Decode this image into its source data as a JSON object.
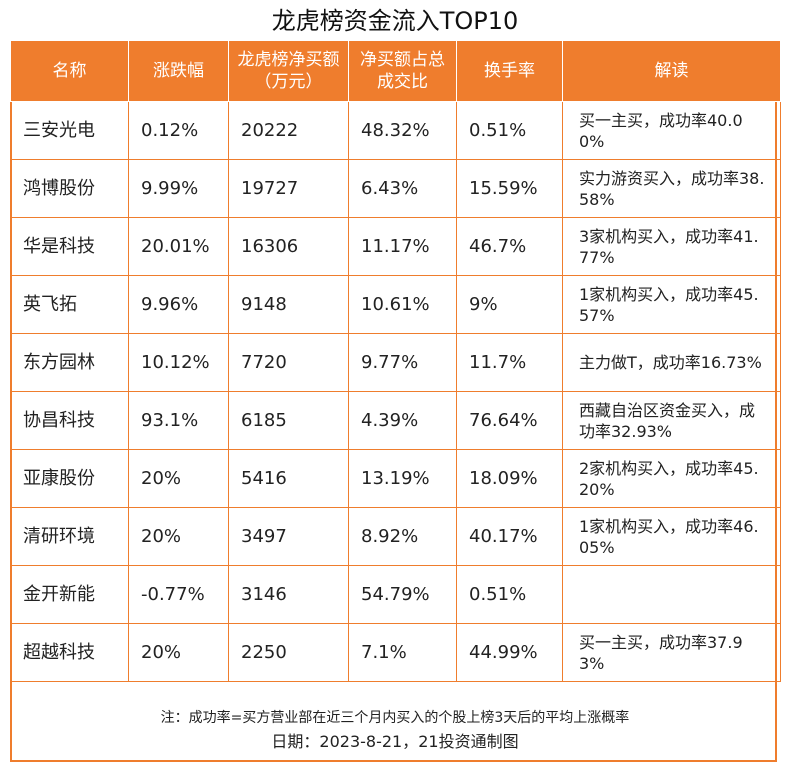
{
  "title": "龙虎榜资金流入TOP10",
  "headers": [
    "名称",
    "涨跌幅",
    "龙虎榜净买额（万元）",
    "净买额占总成交比",
    "换手率",
    "解读"
  ],
  "rows": [
    {
      "name": "三安光电",
      "change": "0.12%",
      "net_buy": "20222",
      "ratio": "48.32%",
      "turnover": "0.51%",
      "note": "买一主买，成功率40.00%"
    },
    {
      "name": "鸿博股份",
      "change": "9.99%",
      "net_buy": "19727",
      "ratio": "6.43%",
      "turnover": "15.59%",
      "note": "实力游资买入，成功率38.58%"
    },
    {
      "name": "华是科技",
      "change": "20.01%",
      "net_buy": "16306",
      "ratio": "11.17%",
      "turnover": "46.7%",
      "note": "3家机构买入，成功率41.77%"
    },
    {
      "name": "英飞拓",
      "change": "9.96%",
      "net_buy": "9148",
      "ratio": "10.61%",
      "turnover": "9%",
      "note": "1家机构买入，成功率45.57%"
    },
    {
      "name": "东方园林",
      "change": "10.12%",
      "net_buy": "7720",
      "ratio": "9.77%",
      "turnover": "11.7%",
      "note": "主力做T，成功率16.73%"
    },
    {
      "name": "协昌科技",
      "change": "93.1%",
      "net_buy": "6185",
      "ratio": "4.39%",
      "turnover": "76.64%",
      "note": "西藏自治区资金买入，成功率32.93%"
    },
    {
      "name": "亚康股份",
      "change": "20%",
      "net_buy": "5416",
      "ratio": "13.19%",
      "turnover": "18.09%",
      "note": "2家机构买入，成功率45.20%"
    },
    {
      "name": "清研环境",
      "change": "20%",
      "net_buy": "3497",
      "ratio": "8.92%",
      "turnover": "40.17%",
      "note": "1家机构买入，成功率46.05%"
    },
    {
      "name": "金开新能",
      "change": "-0.77%",
      "net_buy": "3146",
      "ratio": "54.79%",
      "turnover": "0.51%",
      "note": ""
    },
    {
      "name": "超越科技",
      "change": "20%",
      "net_buy": "2250",
      "ratio": "7.1%",
      "turnover": "44.99%",
      "note": "买一主买，成功率37.93%"
    }
  ],
  "footnote": "注：成功率=买方营业部在近三个月内买入的个股上榜3天后的平均上涨概率",
  "date_line": "日期：2023-8-21，21投资通制图",
  "colors": {
    "accent": "#ef7d2d"
  }
}
